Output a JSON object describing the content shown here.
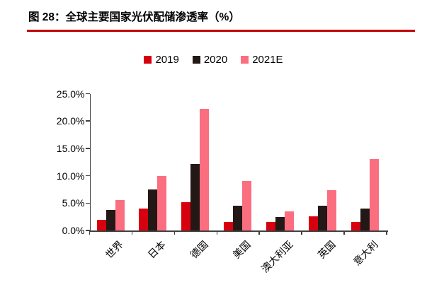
{
  "title": "图 28：全球主要国家光伏配储渗透率（%）",
  "title_underline_color": "#c00000",
  "axis_color": "#404040",
  "chart_data": {
    "type": "bar",
    "title": "全球主要国家光伏配储渗透率（%）",
    "categories": [
      "世界",
      "日本",
      "德国",
      "美国",
      "澳大利亚",
      "英国",
      "意大利"
    ],
    "series": [
      {
        "name": "2019",
        "color": "#d7000f",
        "values": [
          2.0,
          4.0,
          5.2,
          1.5,
          1.5,
          2.6,
          1.5
        ]
      },
      {
        "name": "2020",
        "color": "#231815",
        "values": [
          3.8,
          7.5,
          12.2,
          4.5,
          2.5,
          4.5,
          4.0
        ]
      },
      {
        "name": "2021E",
        "color": "#fb6e7f",
        "values": [
          5.6,
          10.0,
          22.2,
          9.0,
          3.5,
          7.3,
          13.0
        ]
      }
    ],
    "xlabel": "",
    "ylabel": "",
    "ylim": [
      0,
      25
    ],
    "ytick_step": 5,
    "ytick_labels": [
      "0.0%",
      "5.0%",
      "10.0%",
      "15.0%",
      "20.0%",
      "25.0%"
    ],
    "grid": false,
    "legend_position": "top-center"
  }
}
